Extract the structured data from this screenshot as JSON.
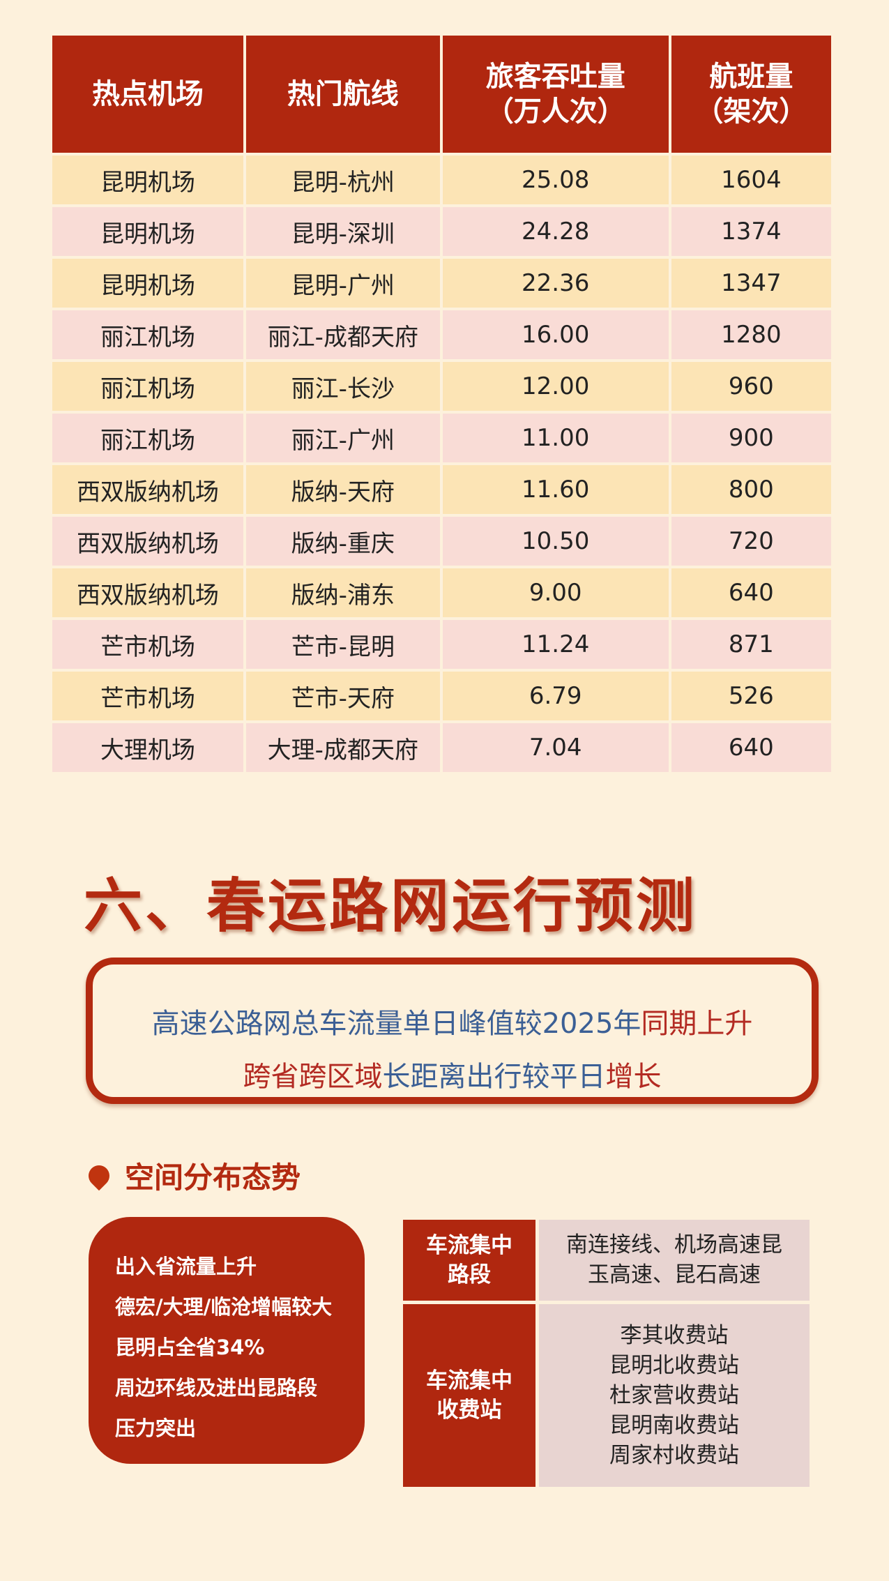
{
  "airport_table": {
    "headers": [
      "热点机场",
      "热门航线",
      "旅客吞吐量\n（万人次）",
      "航班量\n（架次）"
    ],
    "rows": [
      [
        "昆明机场",
        "昆明-杭州",
        "25.08",
        "1604"
      ],
      [
        "昆明机场",
        "昆明-深圳",
        "24.28",
        "1374"
      ],
      [
        "昆明机场",
        "昆明-广州",
        "22.36",
        "1347"
      ],
      [
        "丽江机场",
        "丽江-成都天府",
        "16.00",
        "1280"
      ],
      [
        "丽江机场",
        "丽江-长沙",
        "12.00",
        "960"
      ],
      [
        "丽江机场",
        "丽江-广州",
        "11.00",
        "900"
      ],
      [
        "西双版纳机场",
        "版纳-天府",
        "11.60",
        "800"
      ],
      [
        "西双版纳机场",
        "版纳-重庆",
        "10.50",
        "720"
      ],
      [
        "西双版纳机场",
        "版纳-浦东",
        "9.00",
        "640"
      ],
      [
        "芒市机场",
        "芒市-昆明",
        "11.24",
        "871"
      ],
      [
        "芒市机场",
        "芒市-天府",
        "6.79",
        "526"
      ],
      [
        "大理机场",
        "大理-成都天府",
        "7.04",
        "640"
      ]
    ]
  },
  "section_title": "六、春运路网运行预测",
  "summary_box": {
    "line1_blue": "高速公路网总车流量单日峰值较2025年",
    "line1_red": "同期上升",
    "line2": [
      {
        "text": "跨省跨区域",
        "color": "red"
      },
      {
        "text": "长距离出行较平日",
        "color": "blue"
      },
      {
        "text": "增长",
        "color": "red"
      }
    ]
  },
  "subsection_title": "空间分布态势",
  "left_box_lines": [
    "出入省流量上升",
    "德宏/大理/临沧增幅较大",
    "昆明占全省34%",
    "周边环线及进出昆路段",
    "压力突出"
  ],
  "side_table": {
    "row1_label": "车流集中\n路段",
    "row1_value": "南连接线、机场高速昆\n玉高速、昆石高速",
    "row2_label": "车流集中\n收费站",
    "row2_values": [
      "李其收费站",
      "昆明北收费站",
      "杜家营收费站",
      "昆明南收费站",
      "周家村收费站"
    ]
  },
  "colors": {
    "background": "#fdf1dc",
    "accent_red": "#b0270f",
    "blue_text": "#3b5f95",
    "row_yellow": "#fce4b5",
    "row_pink": "#f9dcd6"
  }
}
